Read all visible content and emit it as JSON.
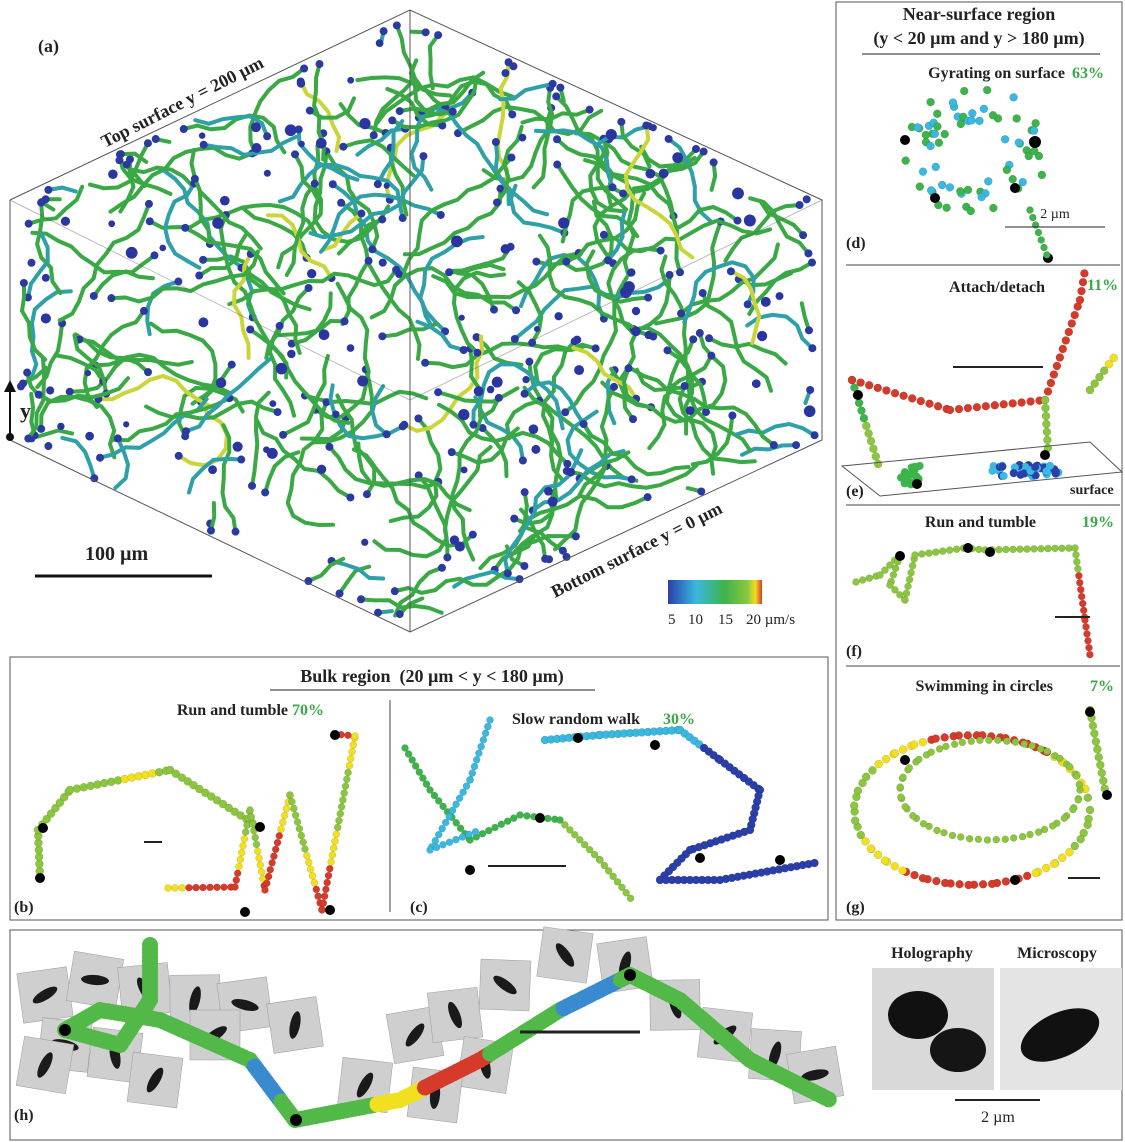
{
  "panel_a": {
    "label": "(a)",
    "top_surface": "Top surface y = 200 µm",
    "bottom_surface": "Bottom surface y = 0 µm",
    "scale_bar": "100 µm",
    "axis": "y",
    "colorbar": {
      "ticks": [
        "5",
        "10",
        "15",
        "20 µm/s"
      ]
    }
  },
  "near_surface": {
    "title": "Near-surface region",
    "subtitle": "(y < 20 µm and y > 180 µm)",
    "panels": [
      {
        "label": "(d)",
        "title": "Gyrating on surface",
        "percent": "63%",
        "scale_bar": "2 µm"
      },
      {
        "label": "(e)",
        "title": "Attach/detach",
        "percent": "11%",
        "surface": "surface"
      },
      {
        "label": "(f)",
        "title": "Run and tumble",
        "percent": "19%"
      },
      {
        "label": "(g)",
        "title": "Swimming in circles",
        "percent": "7%"
      }
    ]
  },
  "bulk": {
    "title": "Bulk region  (20 µm < y < 180 µm)",
    "panels": [
      {
        "label": "(b)",
        "title": "Run and tumble",
        "percent": "70%"
      },
      {
        "label": "(c)",
        "title": "Slow random walk",
        "percent": "30%"
      }
    ]
  },
  "panel_h": {
    "label": "(h)",
    "holography": "Holography",
    "microscopy": "Microscopy",
    "scale_bar": "2 µm"
  }
}
